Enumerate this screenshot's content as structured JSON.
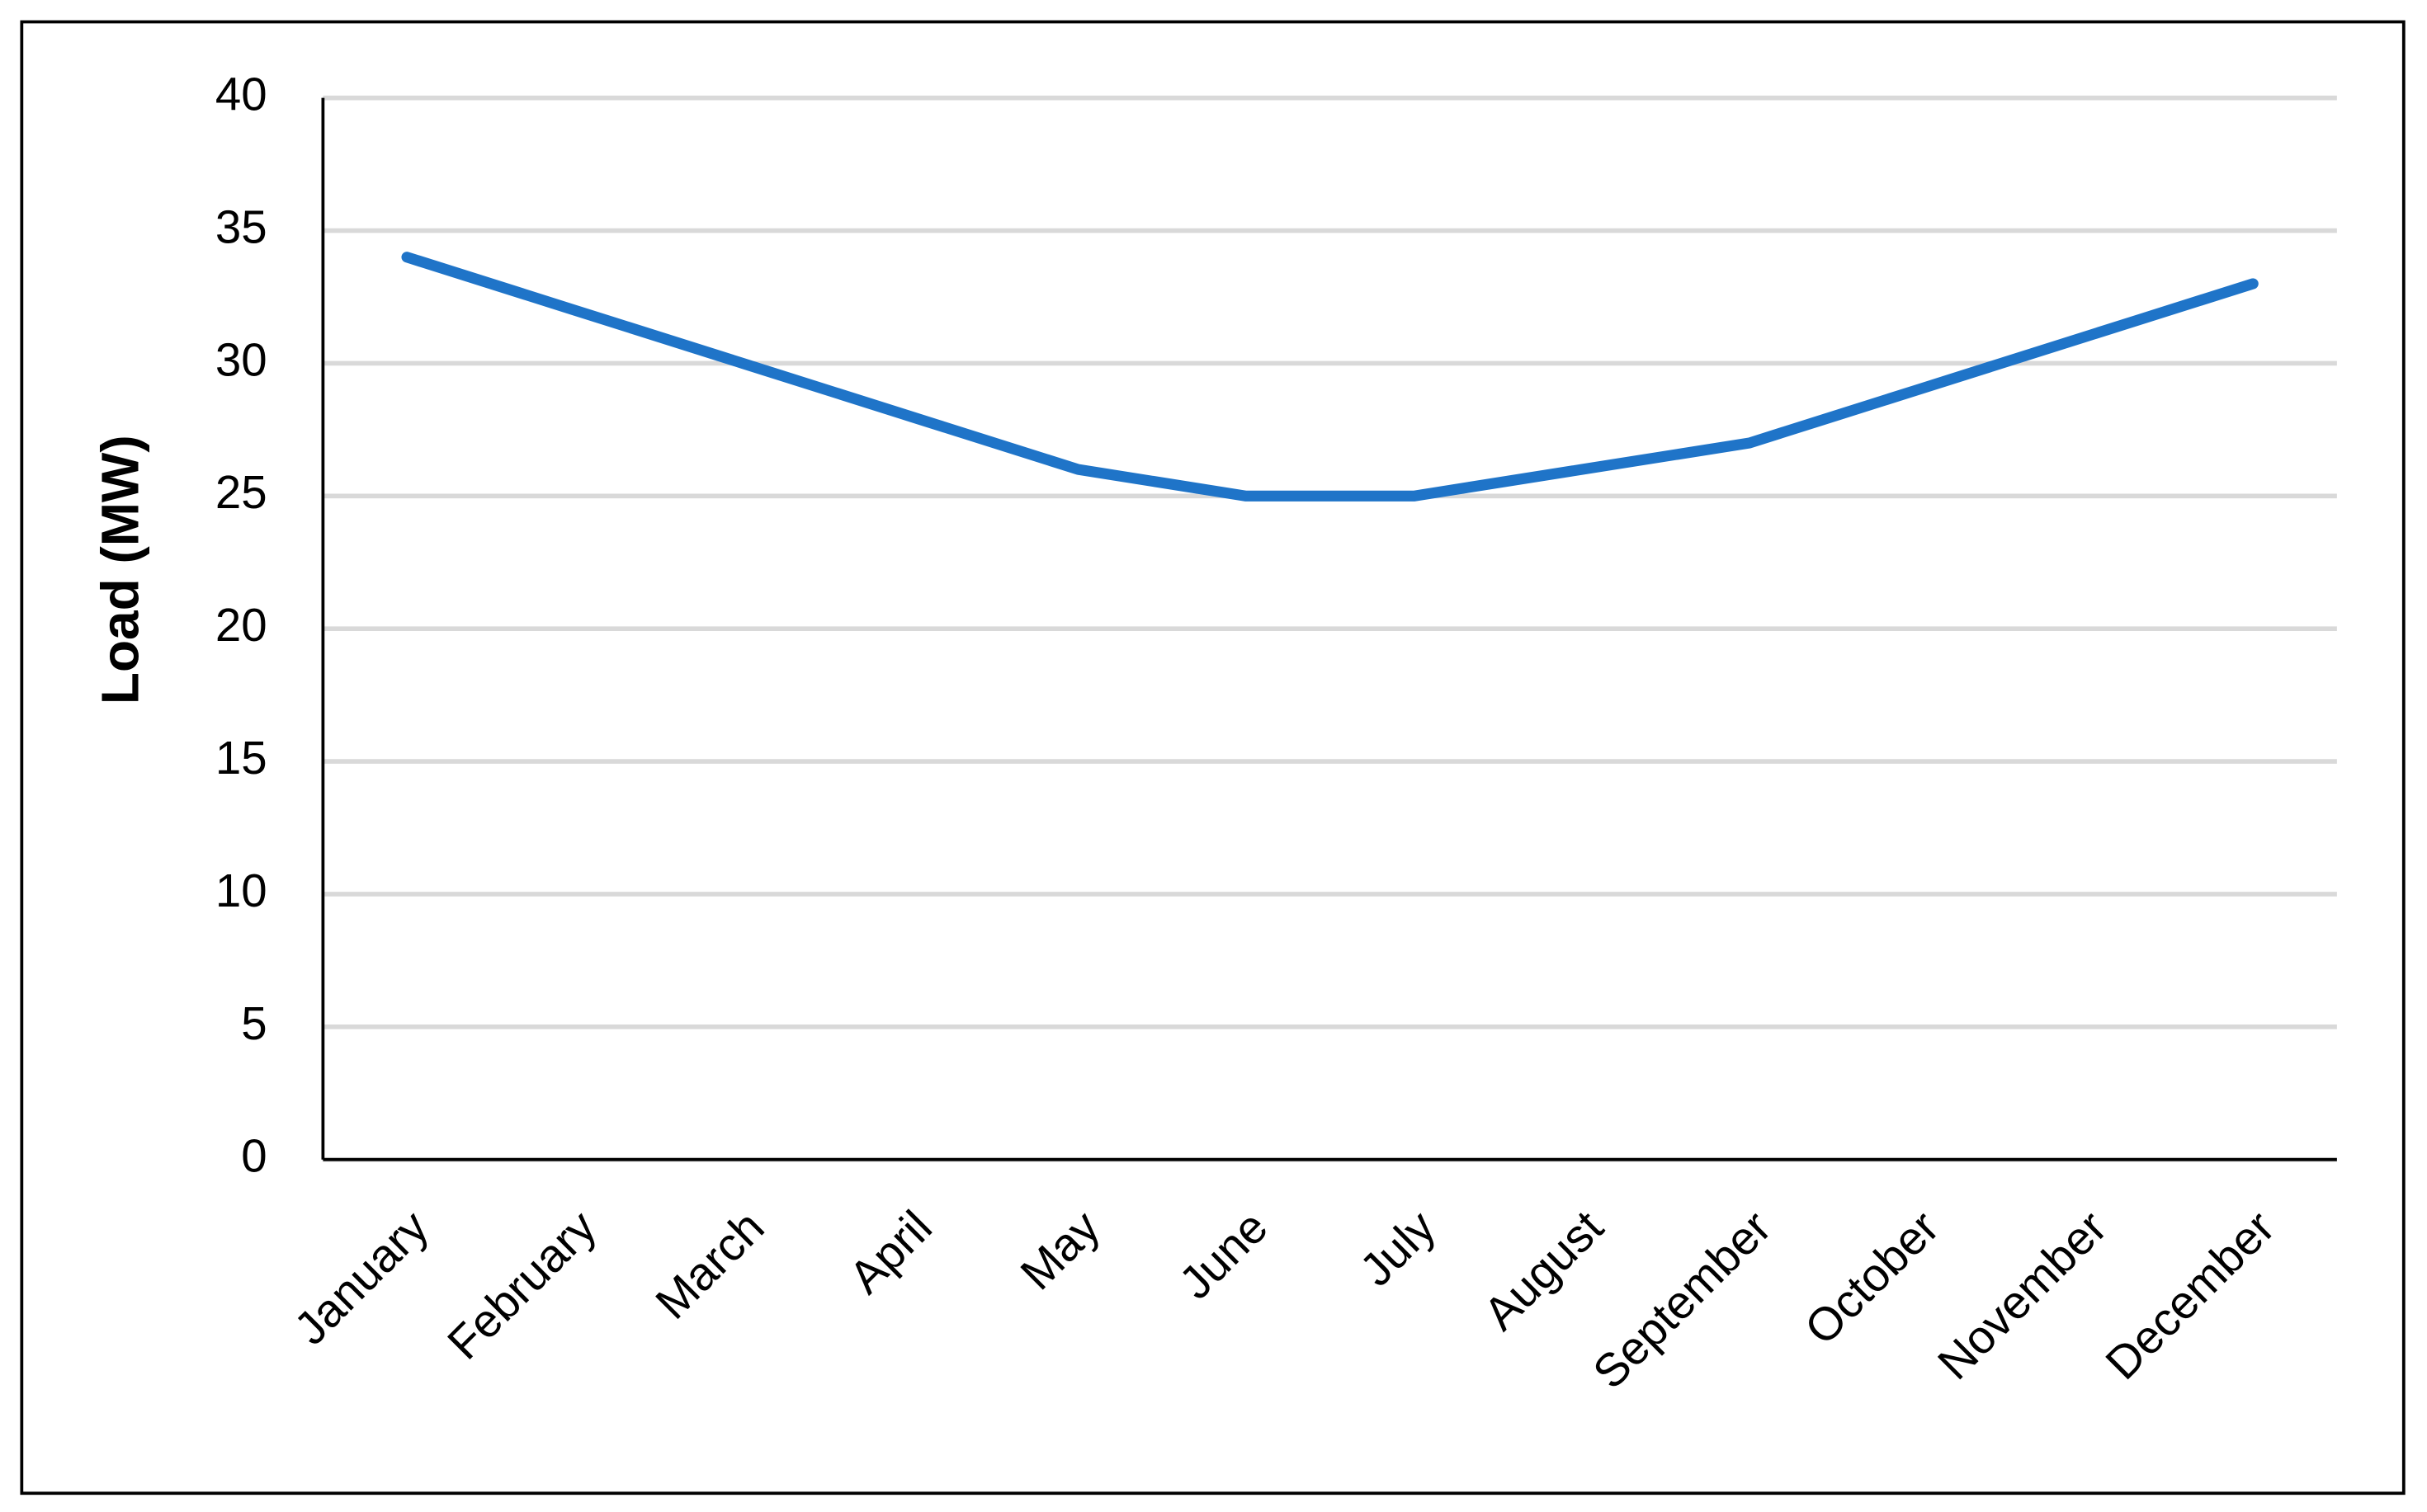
{
  "chart_data": {
    "type": "line",
    "ylabel": "Load (MW)",
    "categories": [
      "January",
      "February",
      "March",
      "April",
      "May",
      "June",
      "July",
      "August",
      "September",
      "October",
      "November",
      "December"
    ],
    "values": [
      34,
      32,
      30,
      28,
      26,
      25,
      25,
      26,
      27,
      29,
      31,
      33
    ],
    "color": "#1f74c8",
    "ylim": [
      0,
      40
    ],
    "yticks": [
      0,
      5,
      10,
      15,
      20,
      25,
      30,
      35,
      40
    ],
    "grid": true
  }
}
